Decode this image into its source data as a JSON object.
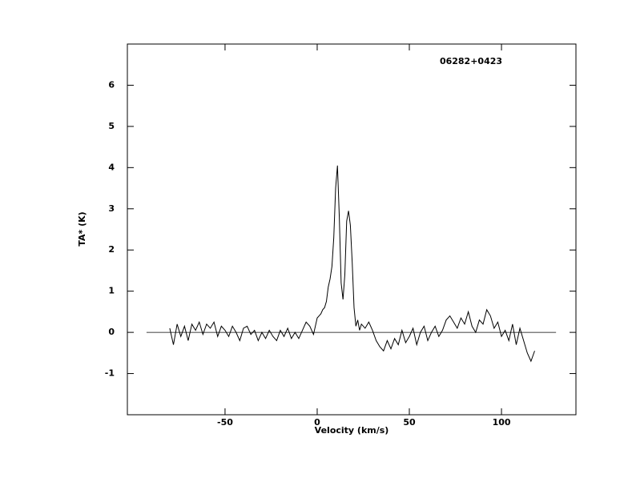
{
  "chart_data": {
    "type": "line",
    "annotation": "06282+0423",
    "x_label": "Velocity (km/s)",
    "y_label": "TA* (K)",
    "xlim": [
      -103,
      140.4
    ],
    "ylim": [
      -2,
      7
    ],
    "xticks": [
      -50,
      0,
      50,
      100
    ],
    "yticks": [
      -1,
      0,
      1,
      2,
      3,
      4,
      5,
      6
    ],
    "reference_line": {
      "y": 0,
      "xmin": -92.6,
      "xmax": 129.6
    },
    "series": [
      {
        "color": "#000000",
        "x": [
          -80,
          -78,
          -76,
          -74,
          -72,
          -70,
          -68,
          -66,
          -64,
          -62,
          -60,
          -58,
          -56,
          -54,
          -52,
          -50,
          -48,
          -46,
          -44,
          -42,
          -40,
          -38,
          -36,
          -34,
          -32,
          -30,
          -28,
          -26,
          -24,
          -22,
          -20,
          -18,
          -16,
          -14,
          -12,
          -10,
          -8,
          -6,
          -4,
          -2,
          0,
          1,
          2,
          3,
          4,
          5,
          6,
          7,
          8,
          9,
          10,
          11,
          12,
          13,
          14,
          15,
          16,
          17,
          18,
          19,
          20,
          21,
          22,
          23,
          24,
          26,
          28,
          30,
          32,
          34,
          36,
          38,
          40,
          42,
          44,
          46,
          48,
          50,
          52,
          54,
          56,
          58,
          60,
          62,
          64,
          66,
          68,
          70,
          72,
          74,
          76,
          78,
          80,
          82,
          84,
          86,
          88,
          90,
          92,
          94,
          96,
          98,
          100,
          102,
          104,
          106,
          108,
          110,
          112,
          114,
          116,
          118
        ],
        "values": [
          0.1,
          -0.3,
          0.2,
          -0.1,
          0.15,
          -0.2,
          0.2,
          0.05,
          0.25,
          -0.05,
          0.2,
          0.1,
          0.25,
          -0.1,
          0.15,
          0.05,
          -0.1,
          0.15,
          0.0,
          -0.2,
          0.1,
          0.15,
          -0.05,
          0.05,
          -0.2,
          0.0,
          -0.15,
          0.05,
          -0.1,
          -0.2,
          0.05,
          -0.1,
          0.1,
          -0.15,
          0.0,
          -0.15,
          0.05,
          0.25,
          0.15,
          -0.05,
          0.35,
          0.4,
          0.45,
          0.55,
          0.6,
          0.75,
          1.1,
          1.3,
          1.6,
          2.3,
          3.5,
          4.05,
          2.8,
          1.2,
          0.8,
          1.4,
          2.7,
          2.95,
          2.6,
          1.7,
          0.6,
          0.15,
          0.3,
          0.05,
          0.2,
          0.1,
          0.25,
          0.05,
          -0.2,
          -0.35,
          -0.45,
          -0.2,
          -0.4,
          -0.15,
          -0.3,
          0.05,
          -0.25,
          -0.1,
          0.1,
          -0.3,
          0.0,
          0.15,
          -0.2,
          0.0,
          0.15,
          -0.1,
          0.05,
          0.3,
          0.4,
          0.25,
          0.1,
          0.35,
          0.2,
          0.5,
          0.15,
          0.0,
          0.3,
          0.2,
          0.55,
          0.4,
          0.1,
          0.25,
          -0.1,
          0.05,
          -0.2,
          0.2,
          -0.3,
          0.1,
          -0.2,
          -0.5,
          -0.7,
          -0.45
        ]
      }
    ]
  }
}
